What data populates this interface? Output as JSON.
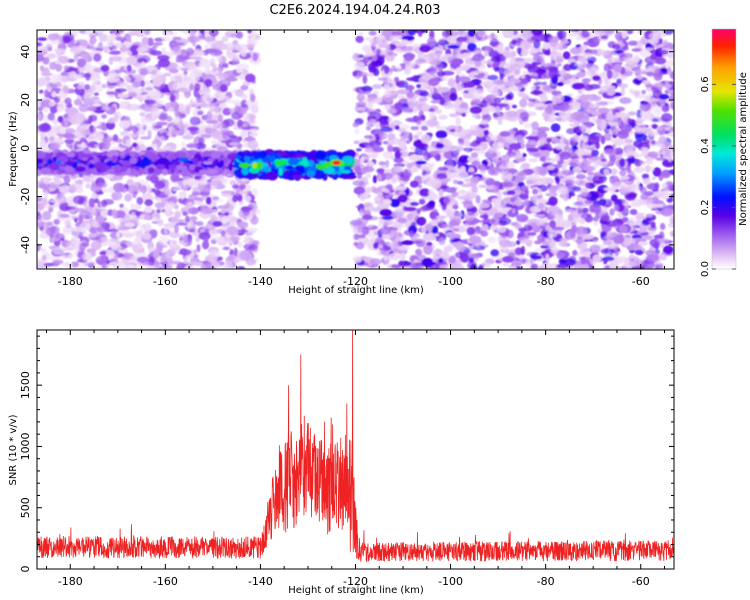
{
  "title": "C2E6.2024.194.04.24.R03",
  "colors": {
    "line": "#ee2222",
    "axes": "#000000",
    "background": "#ffffff"
  },
  "chart_data": [
    {
      "type": "heatmap",
      "xlabel": "Height of straight line (km)",
      "ylabel": "Frequency (Hz)",
      "xlim": [
        -187,
        -53
      ],
      "ylim": [
        -50,
        49
      ],
      "xticks": [
        -180,
        -160,
        -140,
        -120,
        -100,
        -80,
        -60
      ],
      "yticks": [
        -40,
        -20,
        0,
        20,
        40
      ],
      "xtick_labels": [
        "-180",
        "-160",
        "-140",
        "-120",
        "-100",
        "-80",
        "-60"
      ],
      "ytick_labels": [
        "-40",
        "-20",
        "0",
        "20",
        "40"
      ],
      "colorbar": {
        "label": "Normalized spectral amplitude",
        "range": [
          0,
          0.78
        ],
        "ticks": [
          0.0,
          0.2,
          0.4,
          0.6
        ],
        "tick_labels": [
          "0.0",
          "0.2",
          "0.4",
          "0.6"
        ]
      },
      "features": [
        {
          "kind": "noise",
          "x_range": [
            -187,
            -141
          ],
          "y_range": [
            -50,
            49
          ],
          "level": 0.05
        },
        {
          "kind": "gap",
          "x_range": [
            -141,
            -120
          ],
          "y_range": [
            -2,
            49
          ]
        },
        {
          "kind": "gap",
          "x_range": [
            -141,
            -120
          ],
          "y_range": [
            -50,
            -16
          ]
        },
        {
          "kind": "noise",
          "x_range": [
            -121,
            -53
          ],
          "y_range": [
            -50,
            49
          ],
          "level": 0.07
        },
        {
          "kind": "band",
          "x_range": [
            -187,
            -140
          ],
          "y_center": -6,
          "y_halfwidth": 4,
          "level": 0.22
        },
        {
          "kind": "band",
          "x_range": [
            -145,
            -121
          ],
          "y_center": -7,
          "y_halfwidth": 5,
          "level": 0.42
        },
        {
          "kind": "peak",
          "x": -124,
          "y": -6,
          "level": 0.75
        }
      ]
    },
    {
      "type": "line",
      "xlabel": "Height of straight line (km)",
      "ylabel": "SNR (10 * v/v)",
      "xlim": [
        -187,
        -53
      ],
      "ylim": [
        0,
        1950
      ],
      "xticks": [
        -180,
        -160,
        -140,
        -120,
        -100,
        -80,
        -60
      ],
      "yticks": [
        0,
        500,
        1000,
        1500
      ],
      "xtick_labels": [
        "-180",
        "-160",
        "-140",
        "-120",
        "-100",
        "-80",
        "-60"
      ],
      "ytick_labels": [
        "0",
        "500",
        "1000",
        "1500"
      ],
      "series": [
        {
          "profile": [
            {
              "x": -187,
              "mean": 180,
              "spread": 90
            },
            {
              "x": -140,
              "mean": 175,
              "spread": 90
            },
            {
              "x": -138,
              "mean": 420,
              "spread": 220
            },
            {
              "x": -136,
              "mean": 650,
              "spread": 380
            },
            {
              "x": -133,
              "mean": 750,
              "spread": 420
            },
            {
              "x": -130,
              "mean": 820,
              "spread": 380
            },
            {
              "x": -126,
              "mean": 650,
              "spread": 380
            },
            {
              "x": -122,
              "mean": 700,
              "spread": 400
            },
            {
              "x": -121,
              "mean": 600,
              "spread": 500
            },
            {
              "x": -119,
              "mean": 140,
              "spread": 80
            },
            {
              "x": -53,
              "mean": 150,
              "spread": 85
            }
          ],
          "peaks": [
            {
              "x": -120.6,
              "y": 1950
            },
            {
              "x": -131.5,
              "y": 1750
            },
            {
              "x": -130.8,
              "y": 1250
            },
            {
              "x": -126.5,
              "y": 1200
            },
            {
              "x": -124.8,
              "y": 1180
            },
            {
              "x": -121.8,
              "y": 1350
            }
          ]
        }
      ]
    }
  ]
}
